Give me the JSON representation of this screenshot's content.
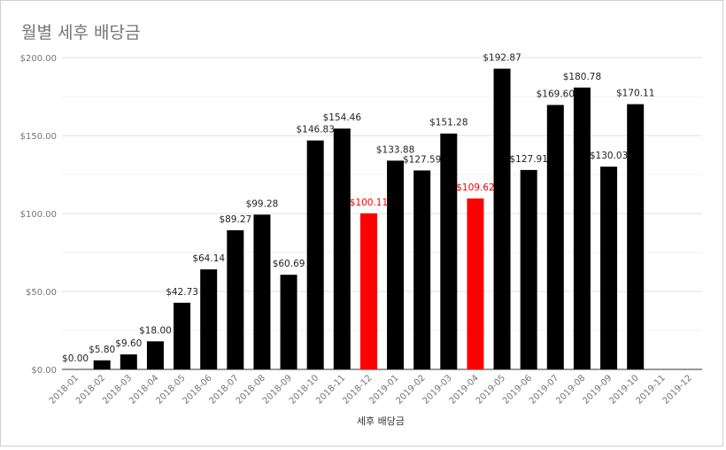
{
  "chart_data": {
    "type": "bar",
    "title": "월별 세후 배당금",
    "xlabel": "세후 배당금",
    "ylabel": "",
    "ylim": [
      0,
      200
    ],
    "yticks": [
      "$0.00",
      "$50.00",
      "$100.00",
      "$150.00",
      "$200.00"
    ],
    "ytick_values": [
      0,
      50,
      100,
      150,
      200
    ],
    "grid": true,
    "categories": [
      "2018-01",
      "2018-02",
      "2018-03",
      "2018-04",
      "2018-05",
      "2018-06",
      "2018-07",
      "2018-08",
      "2018-09",
      "2018-10",
      "2018-11",
      "2018-12",
      "2019-01",
      "2019-02",
      "2019-03",
      "2019-04",
      "2019-05",
      "2019-06",
      "2019-07",
      "2019-08",
      "2019-09",
      "2019-10",
      "2019-11",
      "2019-12"
    ],
    "values": [
      0,
      5.8,
      9.6,
      18.0,
      42.73,
      64.14,
      89.27,
      99.28,
      60.69,
      146.83,
      154.46,
      100.11,
      133.88,
      127.59,
      151.28,
      109.62,
      192.87,
      127.91,
      169.6,
      180.78,
      130.03,
      170.11,
      null,
      null
    ],
    "data_labels": [
      "$0.00",
      "$5.80",
      "$9.60",
      "$18.00",
      "$42.73",
      "$64.14",
      "$89.27",
      "$99.28",
      "$60.69",
      "$146.83",
      "$154.46",
      "$100.11",
      "$133.88",
      "$127.59",
      "$151.28",
      "$109.62",
      "$192.87",
      "$127.91",
      "$169.60",
      "$180.78",
      "$130.03",
      "$170.11",
      "",
      ""
    ],
    "highlighted": [
      "2018-12",
      "2019-04"
    ],
    "colors": {
      "bar": "#000000",
      "highlight": "#ff0000",
      "grid": "#e0e0e0",
      "axis": "#333333",
      "tick": "#757575"
    }
  }
}
